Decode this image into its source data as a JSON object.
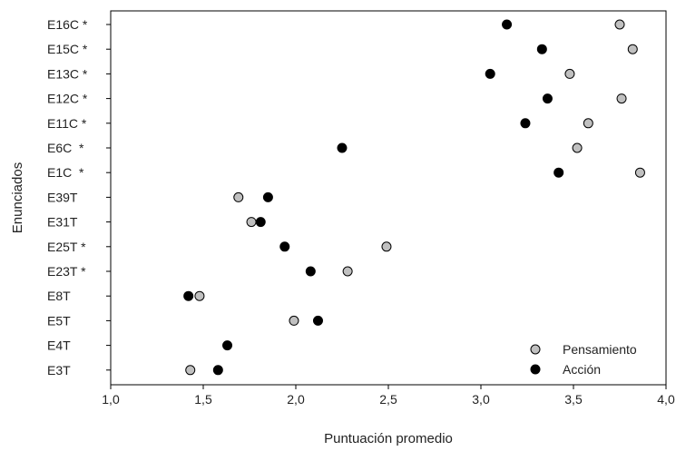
{
  "chart_data": {
    "type": "scatter",
    "orientation": "horizontal",
    "title": "",
    "xlabel": "Puntuación promedio",
    "ylabel": "Enunciados",
    "xlim": [
      1.0,
      4.0
    ],
    "x_ticks": [
      "1,0",
      "1,5",
      "2,0",
      "2,5",
      "3,0",
      "3,5",
      "4,0"
    ],
    "x_tick_values": [
      1.0,
      1.5,
      2.0,
      2.5,
      3.0,
      3.5,
      4.0
    ],
    "categories": [
      "E16C *",
      "E15C *",
      "E13C *",
      "E12C *",
      "E11C *",
      "E6C  *",
      "E1C  *",
      "E39T",
      "E31T",
      "E25T *",
      "E23T *",
      "E8T",
      "E5T",
      "E4T",
      "E3T"
    ],
    "grid": false,
    "legend_position": "bottom-right",
    "series": [
      {
        "name": "Pensamiento",
        "color": "#c0c0c0",
        "values": [
          3.75,
          3.82,
          3.48,
          3.76,
          3.58,
          3.52,
          3.86,
          1.69,
          1.76,
          2.49,
          2.28,
          1.48,
          1.99,
          null,
          1.43
        ]
      },
      {
        "name": "Acción",
        "color": "#000000",
        "values": [
          3.14,
          3.33,
          3.05,
          3.36,
          3.24,
          2.25,
          3.42,
          1.85,
          1.81,
          1.94,
          2.08,
          1.42,
          2.12,
          1.63,
          1.58
        ]
      }
    ]
  }
}
